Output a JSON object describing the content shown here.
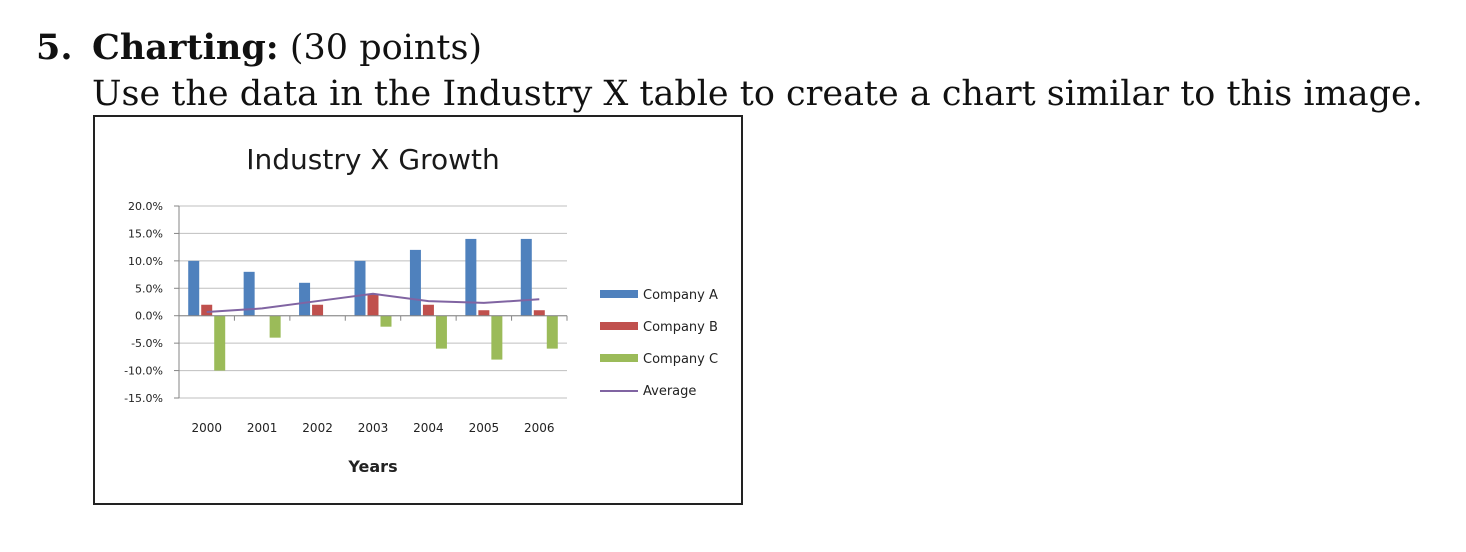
{
  "question": {
    "number": "5.",
    "label": "Charting:",
    "points": "(30 points)",
    "instruction": "Use the data in the Industry X table to create a chart similar to this image."
  },
  "chart_data": {
    "type": "bar",
    "title": "Industry X Growth",
    "xlabel": "Years",
    "ylabel": "",
    "categories": [
      "2000",
      "2001",
      "2002",
      "2003",
      "2004",
      "2005",
      "2006"
    ],
    "y_ticks": [
      "20.0%",
      "15.0%",
      "10.0%",
      "5.0%",
      "0.0%",
      "-5.0%",
      "-10.0%",
      "-15.0%"
    ],
    "ylim": [
      -15,
      20
    ],
    "grid": true,
    "legend_position": "right",
    "series": [
      {
        "name": "Company A",
        "kind": "bar",
        "color": "#4f81bd",
        "values": [
          10,
          8,
          6,
          10,
          12,
          14,
          14
        ]
      },
      {
        "name": "Company B",
        "kind": "bar",
        "color": "#c0504d",
        "values": [
          2,
          0,
          2,
          4,
          2,
          1,
          1
        ]
      },
      {
        "name": "Company C",
        "kind": "bar",
        "color": "#9bbb59",
        "values": [
          -10,
          -4,
          0,
          -2,
          -6,
          -8,
          -6
        ]
      },
      {
        "name": "Average",
        "kind": "line",
        "color": "#8064a2",
        "values": [
          0.67,
          1.33,
          2.67,
          4,
          2.67,
          2.33,
          3
        ]
      }
    ]
  }
}
